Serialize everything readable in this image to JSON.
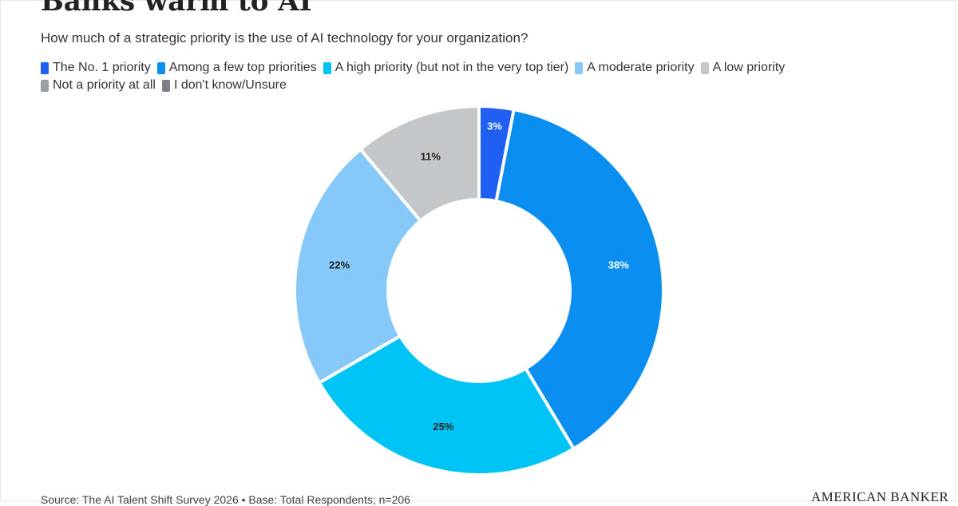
{
  "chart_data": {
    "type": "pie",
    "title": "Banks warm to AI",
    "subtitle": "How much of a strategic priority is the use of AI technology for your organization?",
    "legend_position": "top-left",
    "categories": [
      "The No. 1 priority",
      "Among a few top priorities",
      "A high priority (but not in the very top tier)",
      "A moderate priority",
      "A low priority",
      "Not a priority at all",
      "I don't know/Unsure"
    ],
    "values": [
      3,
      38,
      25,
      22,
      11,
      0,
      0
    ],
    "value_labels": [
      "3%",
      "38%",
      "25%",
      "22%",
      "11%",
      "",
      ""
    ],
    "colors": [
      "#1f5ff2",
      "#0a8ff0",
      "#00c4f5",
      "#86c8f7",
      "#c3c7ca",
      "#9a9fa3",
      "#7b8186"
    ],
    "label_colors": [
      "#ffffff",
      "#ffffff",
      "#222222",
      "#222222",
      "#222222",
      "#222222",
      "#222222"
    ],
    "donut": true
  },
  "footer": {
    "source": "Source: The AI Talent Shift Survey 2026 • Base: Total Respondents; n=206",
    "brand": "AMERICAN BANKER"
  }
}
